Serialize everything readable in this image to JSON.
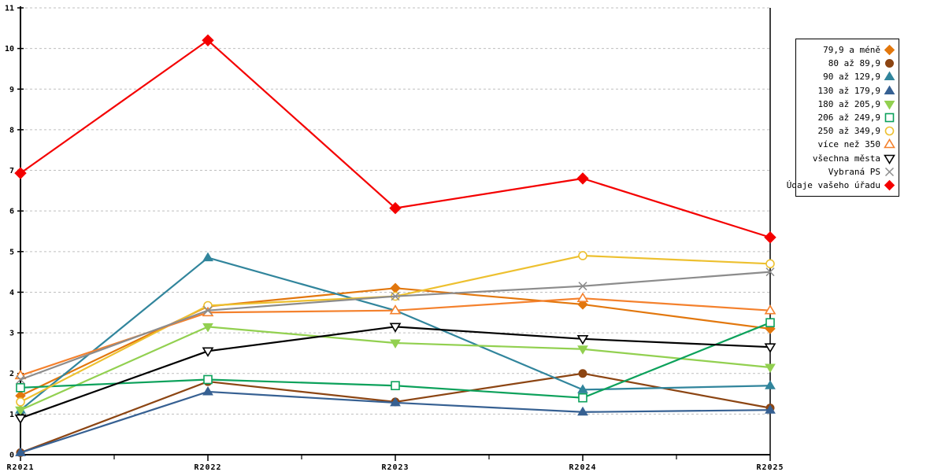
{
  "chart_data": {
    "type": "line",
    "title": "",
    "xlabel": "",
    "ylabel": "",
    "categories": [
      "R2021",
      "R2022",
      "R2023",
      "R2024",
      "R2025"
    ],
    "ylim": [
      0,
      11
    ],
    "y_ticks": [
      "0",
      "1",
      "2",
      "3",
      "4",
      "5",
      "6",
      "7",
      "8",
      "9",
      "10",
      "11"
    ],
    "grid": "horizontal-dashed",
    "legend_position": "right-outside",
    "series": [
      {
        "name": "79,9 a méně",
        "marker": "diamond",
        "fill": "filled",
        "color": "#E2770D",
        "values": [
          1.45,
          3.65,
          4.1,
          3.7,
          3.1
        ]
      },
      {
        "name": "80 až 89,9",
        "marker": "circle",
        "fill": "filled",
        "color": "#8C4513",
        "values": [
          0.05,
          1.8,
          1.3,
          2.0,
          1.15
        ]
      },
      {
        "name": "90 až 129,9",
        "marker": "triangle-up",
        "fill": "filled",
        "color": "#31859C",
        "values": [
          1.1,
          4.85,
          3.55,
          1.6,
          1.7
        ]
      },
      {
        "name": "130 až 179,9",
        "marker": "triangle-up",
        "fill": "filled",
        "color": "#366092",
        "values": [
          0.05,
          1.55,
          1.28,
          1.05,
          1.1
        ]
      },
      {
        "name": "180 až 205,9",
        "marker": "triangle-down",
        "fill": "filled",
        "color": "#92D050",
        "values": [
          1.1,
          3.15,
          2.75,
          2.6,
          2.15
        ]
      },
      {
        "name": "206 až 249,9",
        "marker": "square",
        "fill": "open",
        "color": "#0CA15B",
        "values": [
          1.65,
          1.85,
          1.7,
          1.4,
          3.25
        ]
      },
      {
        "name": "250 až 349,9",
        "marker": "circle",
        "fill": "open",
        "color": "#EDC02F",
        "values": [
          1.3,
          3.67,
          3.9,
          4.9,
          4.7
        ]
      },
      {
        "name": "více než 350",
        "marker": "triangle-up",
        "fill": "open",
        "color": "#F4812D",
        "values": [
          1.95,
          3.5,
          3.55,
          3.85,
          3.55
        ]
      },
      {
        "name": "všechna města",
        "marker": "triangle-down",
        "fill": "open",
        "color": "#000000",
        "values": [
          0.9,
          2.55,
          3.15,
          2.85,
          2.65
        ]
      },
      {
        "name": "Vybraná PS",
        "marker": "x",
        "fill": "open",
        "color": "#8C8C8C",
        "values": [
          1.85,
          3.55,
          3.9,
          4.15,
          4.5
        ]
      },
      {
        "name": "Údaje vašeho úřadu",
        "marker": "diamond",
        "fill": "filled",
        "color": "#F40000",
        "values": [
          6.93,
          10.2,
          6.07,
          6.8,
          5.35
        ]
      }
    ]
  },
  "colors": {
    "background": "#FFFFFF",
    "axis": "#000000",
    "grid": "#BFBFBF",
    "legend_border": "#000000"
  }
}
